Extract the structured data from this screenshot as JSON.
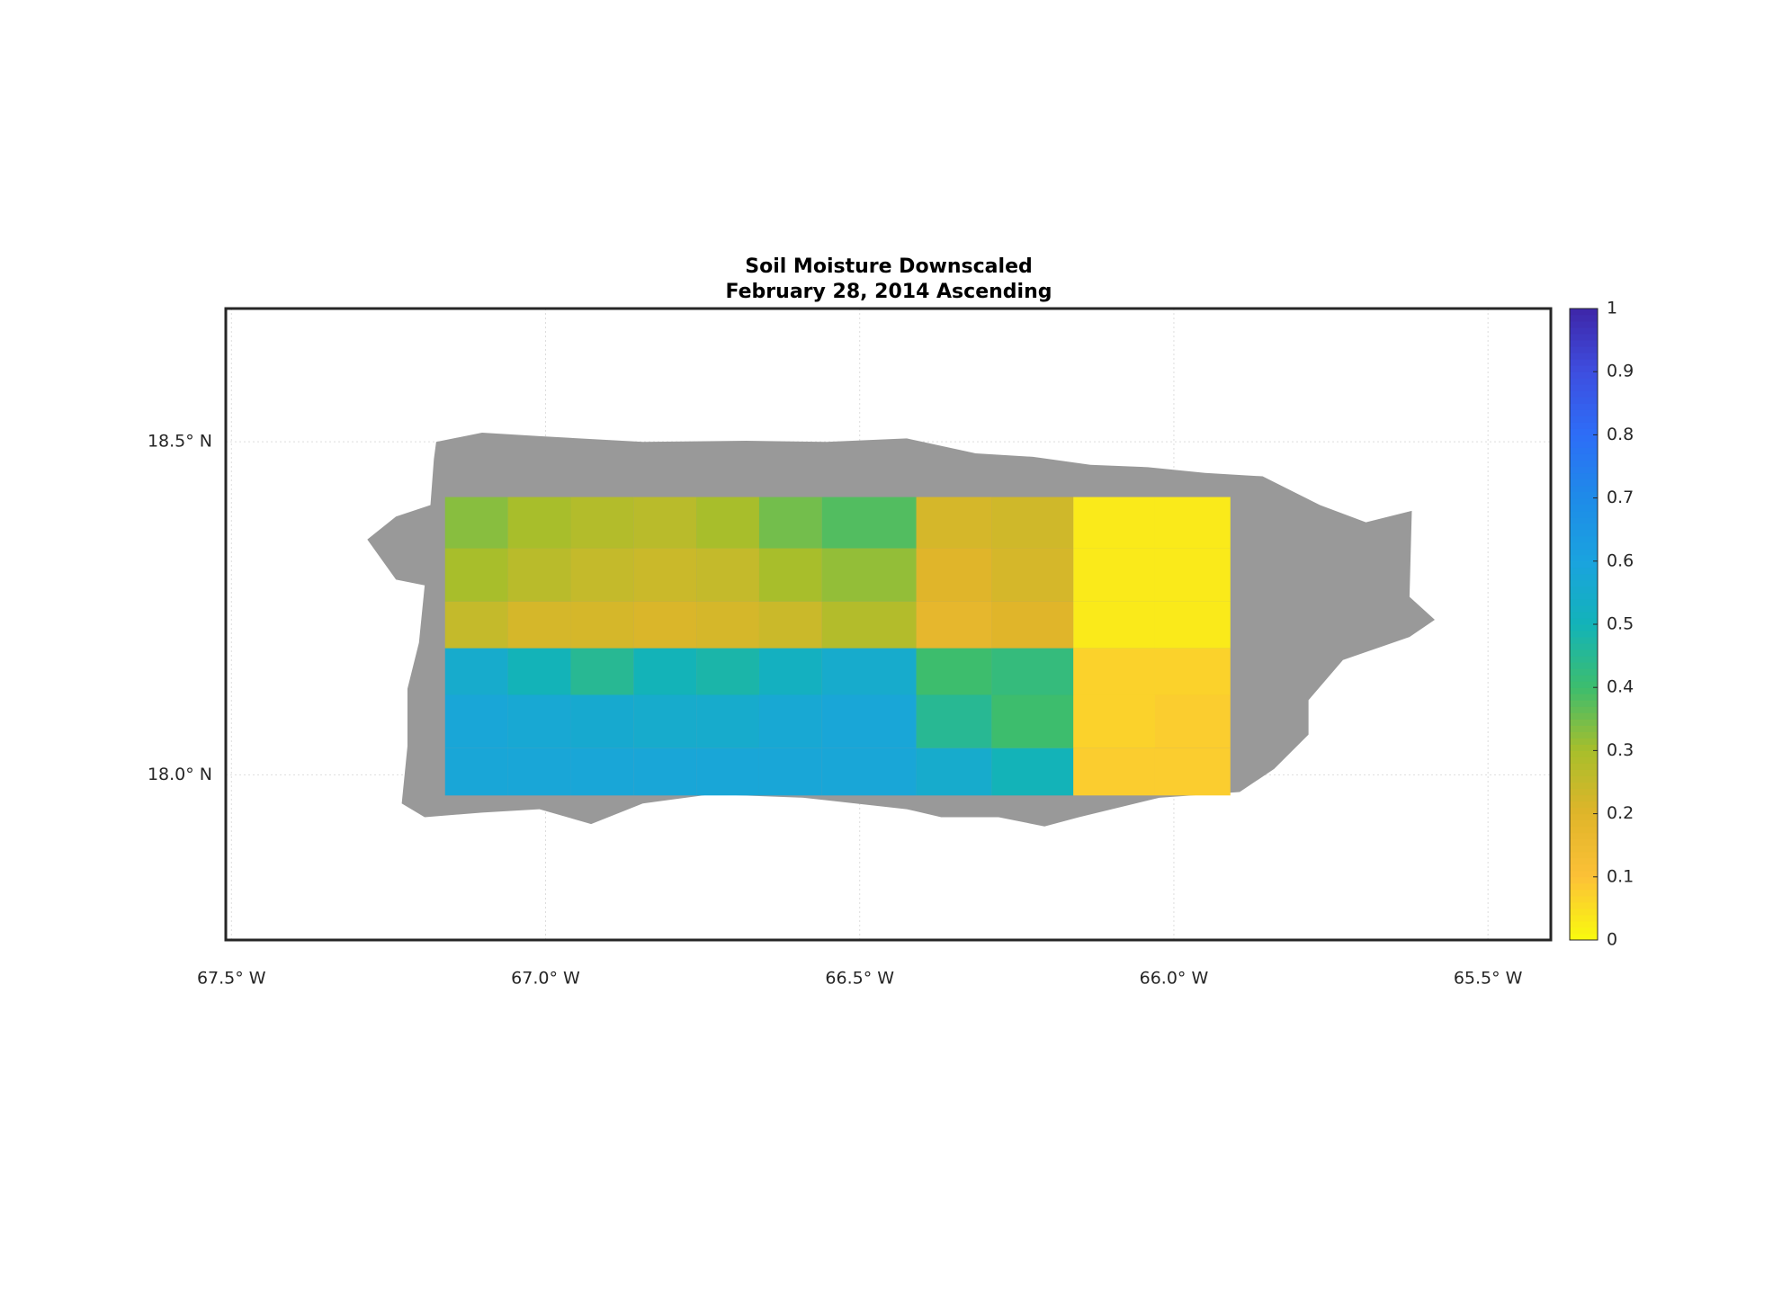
{
  "chart_data": {
    "type": "heatmap",
    "title": [
      "Soil Moisture Downscaled",
      "February 28, 2014 Ascending"
    ],
    "x_edges": [
      -67.16,
      -67.06,
      -66.96,
      -66.86,
      -66.76,
      -66.66,
      -66.56,
      -66.41,
      -66.29,
      -66.16,
      -66.03,
      -65.91
    ],
    "y_edges": [
      18.417,
      18.34,
      18.26,
      18.19,
      18.12,
      18.04,
      17.969
    ],
    "z": [
      [
        0.33,
        0.3,
        0.28,
        0.27,
        0.3,
        0.35,
        0.38,
        0.22,
        0.23,
        0.03,
        0.03
      ],
      [
        0.3,
        0.27,
        0.25,
        0.24,
        0.25,
        0.3,
        0.32,
        0.2,
        0.22,
        0.03,
        0.03
      ],
      [
        0.25,
        0.22,
        0.22,
        0.21,
        0.22,
        0.24,
        0.28,
        0.18,
        0.2,
        0.03,
        0.03
      ],
      [
        0.55,
        0.5,
        0.45,
        0.5,
        0.48,
        0.52,
        0.55,
        0.4,
        0.42,
        0.07,
        0.07
      ],
      [
        0.58,
        0.57,
        0.56,
        0.55,
        0.55,
        0.57,
        0.58,
        0.45,
        0.4,
        0.07,
        0.08
      ],
      [
        0.58,
        0.58,
        0.58,
        0.58,
        0.58,
        0.58,
        0.58,
        0.55,
        0.5,
        0.08,
        0.08
      ]
    ],
    "xlim": [
      -67.509,
      -65.4
    ],
    "ylim": [
      17.752,
      18.7
    ],
    "xticks": [
      {
        "value": -67.5,
        "label": "67.5° W"
      },
      {
        "value": -67.0,
        "label": "67.0° W"
      },
      {
        "value": -66.5,
        "label": "66.5° W"
      },
      {
        "value": -66.0,
        "label": "66.0° W"
      },
      {
        "value": -65.5,
        "label": "65.5° W"
      }
    ],
    "yticks": [
      {
        "value": 18.0,
        "label": "18.0° N"
      },
      {
        "value": 18.5,
        "label": "18.5° N"
      }
    ],
    "grid": true,
    "colormap": "parula-reversed",
    "clim": [
      0,
      1
    ],
    "cticks": [
      0,
      0.1,
      0.2,
      0.3,
      0.4,
      0.5,
      0.6,
      0.7,
      0.8,
      0.9,
      1
    ]
  }
}
